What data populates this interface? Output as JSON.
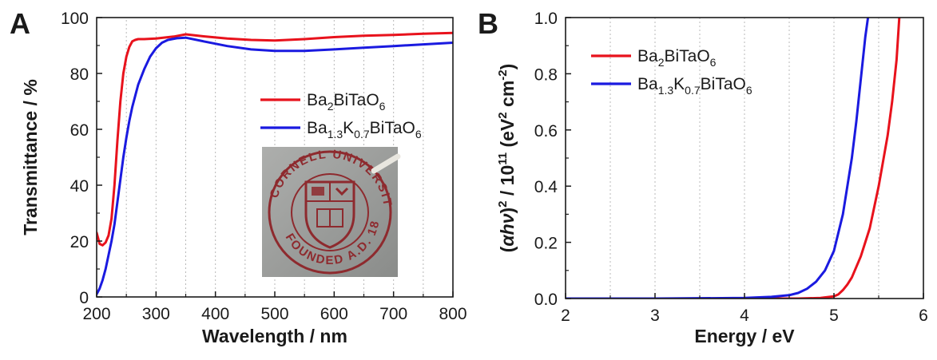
{
  "chart_data": [
    {
      "type": "line",
      "panel": "A",
      "xlabel": "Wavelength / nm",
      "ylabel": "Transmittance / %",
      "xlim": [
        200,
        800
      ],
      "ylim": [
        0,
        100
      ],
      "xticks": [
        "200",
        "300",
        "400",
        "500",
        "600",
        "700",
        "800"
      ],
      "yticks": [
        "0",
        "20",
        "40",
        "60",
        "80",
        "100"
      ],
      "grid": "vertical dotted",
      "legend_position": "middle-right",
      "series": [
        {
          "name": "Ba2BiTaO6",
          "legend": {
            "base": "Ba",
            "sub1": "2",
            "mid": "BiTaO",
            "sub2": "6"
          },
          "color": "#e8121c",
          "x": [
            200,
            205,
            210,
            215,
            220,
            225,
            230,
            235,
            240,
            245,
            250,
            255,
            260,
            265,
            270,
            280,
            300,
            330,
            350,
            380,
            420,
            460,
            500,
            550,
            600,
            650,
            700,
            750,
            800
          ],
          "y": [
            23,
            19,
            18.5,
            19.5,
            22,
            28,
            40,
            56,
            70,
            80,
            86,
            89.5,
            91.5,
            92,
            92.3,
            92.3,
            92.5,
            93.2,
            94,
            93.3,
            92.5,
            92,
            91.8,
            92.3,
            93,
            93.5,
            93.8,
            94.2,
            94.5
          ]
        },
        {
          "name": "Ba1.3K0.7BiTaO6",
          "legend": {
            "base": "Ba",
            "sub1": "1.3",
            "mid": "K",
            "sub2": "0.7",
            "tail": "BiTaO",
            "sub3": "6"
          },
          "color": "#1a1ae0",
          "x": [
            200,
            205,
            210,
            215,
            220,
            225,
            230,
            235,
            240,
            245,
            250,
            255,
            260,
            265,
            270,
            280,
            290,
            300,
            310,
            320,
            335,
            350,
            380,
            420,
            460,
            500,
            550,
            600,
            650,
            700,
            750,
            800
          ],
          "y": [
            1,
            3,
            6,
            10,
            15,
            20,
            26,
            34,
            42,
            50,
            57,
            63,
            68,
            72,
            76,
            81.5,
            86,
            89,
            91,
            92,
            92.6,
            92.8,
            91.5,
            89.8,
            88.6,
            88.1,
            88.1,
            88.6,
            89.2,
            89.8,
            90.4,
            91
          ]
        }
      ],
      "inset": {
        "description_hidden": true,
        "seal_top_text": "CORNELL UNIVERSITY",
        "seal_bottom_text": "FOUNDED A.D. 1865",
        "colors": {
          "background": "#9ea09e",
          "seal": "#8e2a2e"
        }
      }
    },
    {
      "type": "line",
      "panel": "B",
      "xlabel": "Energy / eV",
      "ylabel": "(αhν)² / 10¹¹ (eV² cm⁻²)",
      "ylabel_parts": {
        "open": "(",
        "alpha": "α",
        "hnu": "hν",
        "close": ")",
        "sq": "2",
        "mid": " / 10",
        "exp": "11",
        "unit_open": " (eV",
        "sq2": "2",
        "cm": " cm",
        "neg2": "-2",
        "unit_close": ")"
      },
      "xlim": [
        2,
        6
      ],
      "ylim": [
        0,
        1.0
      ],
      "xticks": [
        "2",
        "3",
        "4",
        "5",
        "6"
      ],
      "yticks": [
        "0.0",
        "0.2",
        "0.4",
        "0.6",
        "0.8",
        "1.0"
      ],
      "grid": "vertical dotted",
      "legend_position": "top-left",
      "series": [
        {
          "name": "Ba2BiTaO6",
          "legend": {
            "base": "Ba",
            "sub1": "2",
            "mid": "BiTaO",
            "sub2": "6"
          },
          "color": "#e8121c",
          "x": [
            2.0,
            3.0,
            4.0,
            4.6,
            4.85,
            5.0,
            5.05,
            5.1,
            5.15,
            5.2,
            5.3,
            5.4,
            5.5,
            5.6,
            5.65,
            5.7,
            5.73
          ],
          "y": [
            0,
            0,
            0,
            0,
            0.002,
            0.008,
            0.015,
            0.03,
            0.05,
            0.075,
            0.15,
            0.25,
            0.4,
            0.58,
            0.7,
            0.85,
            1.0
          ]
        },
        {
          "name": "Ba1.3K0.7BiTaO6",
          "legend": {
            "base": "Ba",
            "sub1": "1.3",
            "mid": "K",
            "sub2": "0.7",
            "tail": "BiTaO",
            "sub3": "6"
          },
          "color": "#1a1ae0",
          "x": [
            2.0,
            3.0,
            4.0,
            4.3,
            4.5,
            4.6,
            4.7,
            4.8,
            4.9,
            5.0,
            5.1,
            5.2,
            5.25,
            5.3,
            5.35,
            5.38
          ],
          "y": [
            0,
            0,
            0.002,
            0.006,
            0.012,
            0.02,
            0.035,
            0.06,
            0.1,
            0.17,
            0.3,
            0.5,
            0.63,
            0.78,
            0.93,
            1.0
          ]
        }
      ]
    }
  ],
  "panels": {
    "a_label": "A",
    "b_label": "B"
  }
}
